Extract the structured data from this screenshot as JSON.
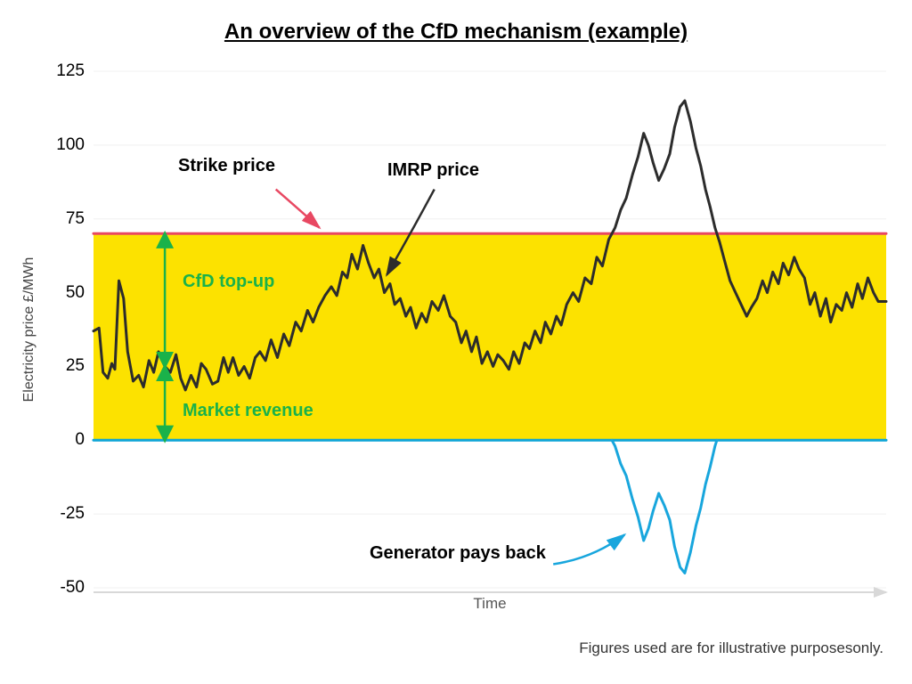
{
  "title": "An overview of the CfD mechanism (example)",
  "ylabel": "Electricity price £/MWh",
  "xlabel": "Time",
  "footnote": "Figures used are for illustrative purposesonly.",
  "chart": {
    "type": "line",
    "xlim": [
      0,
      100
    ],
    "ylim": [
      -50,
      125
    ],
    "ytick_step": 25,
    "yticks": [
      -50,
      -25,
      0,
      25,
      50,
      75,
      100,
      125
    ],
    "strike_price": 70,
    "background_color": "#ffffff",
    "grid_color": "#f3f3f3",
    "grid_stroke": 1.2,
    "yellow_fill": "#fce200",
    "strike_line_color": "#e84862",
    "strike_line_width": 3,
    "zero_line_color": "#0fa5d6",
    "zero_line_width": 3,
    "imrp_line_color": "#2c2c2c",
    "imrp_line_width": 3,
    "payback_line_color": "#18a6dd",
    "payback_line_width": 3,
    "annotation_colors": {
      "strike": "#e84862",
      "imrp": "#2c2c2c",
      "topup": "#1ab24a",
      "market": "#1ab24a",
      "payback": "#18a6dd"
    },
    "annotations": {
      "strike_price": "Strike price",
      "imrp_price": "IMRP price",
      "cfd_topup": "CfD top-up",
      "market_revenue": "Market revenue",
      "generator_pays_back": "Generator pays back"
    },
    "imrp_series": [
      [
        0,
        37
      ],
      [
        0.7,
        38
      ],
      [
        1.2,
        23
      ],
      [
        1.8,
        21
      ],
      [
        2.3,
        26
      ],
      [
        2.7,
        24
      ],
      [
        3.2,
        54
      ],
      [
        3.8,
        48
      ],
      [
        4.3,
        30
      ],
      [
        5,
        20
      ],
      [
        5.7,
        22
      ],
      [
        6.3,
        18
      ],
      [
        7,
        27
      ],
      [
        7.6,
        23
      ],
      [
        8.2,
        30
      ],
      [
        9,
        25
      ],
      [
        9.7,
        23
      ],
      [
        10.4,
        29
      ],
      [
        11,
        21
      ],
      [
        11.6,
        17
      ],
      [
        12.3,
        22
      ],
      [
        13,
        18
      ],
      [
        13.6,
        26
      ],
      [
        14.2,
        24
      ],
      [
        15,
        19
      ],
      [
        15.7,
        20
      ],
      [
        16.4,
        28
      ],
      [
        17,
        23
      ],
      [
        17.6,
        28
      ],
      [
        18.3,
        22
      ],
      [
        19,
        25
      ],
      [
        19.7,
        21
      ],
      [
        20.4,
        28
      ],
      [
        21,
        30
      ],
      [
        21.7,
        27
      ],
      [
        22.4,
        34
      ],
      [
        23.2,
        28
      ],
      [
        24,
        36
      ],
      [
        24.7,
        32
      ],
      [
        25.5,
        40
      ],
      [
        26.2,
        37
      ],
      [
        27,
        44
      ],
      [
        27.7,
        40
      ],
      [
        28.4,
        45
      ],
      [
        29.2,
        49
      ],
      [
        30,
        52
      ],
      [
        30.7,
        49
      ],
      [
        31.4,
        57
      ],
      [
        32,
        55
      ],
      [
        32.6,
        63
      ],
      [
        33.3,
        58
      ],
      [
        34,
        66
      ],
      [
        34.7,
        60
      ],
      [
        35.4,
        55
      ],
      [
        36,
        58
      ],
      [
        36.7,
        50
      ],
      [
        37.4,
        53
      ],
      [
        38,
        46
      ],
      [
        38.7,
        48
      ],
      [
        39.4,
        42
      ],
      [
        40,
        45
      ],
      [
        40.7,
        38
      ],
      [
        41.4,
        43
      ],
      [
        42,
        40
      ],
      [
        42.7,
        47
      ],
      [
        43.5,
        44
      ],
      [
        44.2,
        49
      ],
      [
        45,
        42
      ],
      [
        45.7,
        40
      ],
      [
        46.4,
        33
      ],
      [
        47,
        37
      ],
      [
        47.7,
        30
      ],
      [
        48.3,
        35
      ],
      [
        49,
        26
      ],
      [
        49.7,
        30
      ],
      [
        50.4,
        25
      ],
      [
        51,
        29
      ],
      [
        51.7,
        27
      ],
      [
        52.4,
        24
      ],
      [
        53,
        30
      ],
      [
        53.7,
        26
      ],
      [
        54.4,
        33
      ],
      [
        55,
        31
      ],
      [
        55.7,
        37
      ],
      [
        56.4,
        33
      ],
      [
        57,
        40
      ],
      [
        57.7,
        36
      ],
      [
        58.4,
        42
      ],
      [
        59,
        39
      ],
      [
        59.7,
        46
      ],
      [
        60.5,
        50
      ],
      [
        61.2,
        47
      ],
      [
        62,
        55
      ],
      [
        62.8,
        53
      ],
      [
        63.5,
        62
      ],
      [
        64.2,
        59
      ],
      [
        65,
        68
      ],
      [
        65.8,
        72
      ],
      [
        66.5,
        78
      ],
      [
        67.2,
        82
      ],
      [
        68,
        90
      ],
      [
        68.7,
        96
      ],
      [
        69.4,
        104
      ],
      [
        70,
        100
      ],
      [
        70.6,
        94
      ],
      [
        71.3,
        88
      ],
      [
        72,
        92
      ],
      [
        72.7,
        97
      ],
      [
        73.3,
        106
      ],
      [
        74,
        113
      ],
      [
        74.6,
        115
      ],
      [
        75.3,
        108
      ],
      [
        76,
        99
      ],
      [
        76.6,
        93
      ],
      [
        77.2,
        85
      ],
      [
        77.8,
        79
      ],
      [
        78.4,
        72
      ],
      [
        79,
        67
      ],
      [
        79.6,
        61
      ],
      [
        80.3,
        54
      ],
      [
        81,
        50
      ],
      [
        81.7,
        46
      ],
      [
        82.4,
        42
      ],
      [
        83,
        45
      ],
      [
        83.7,
        48
      ],
      [
        84.4,
        54
      ],
      [
        85,
        50
      ],
      [
        85.7,
        57
      ],
      [
        86.4,
        53
      ],
      [
        87,
        60
      ],
      [
        87.7,
        56
      ],
      [
        88.4,
        62
      ],
      [
        89,
        58
      ],
      [
        89.7,
        55
      ],
      [
        90.4,
        46
      ],
      [
        91,
        50
      ],
      [
        91.7,
        42
      ],
      [
        92.4,
        48
      ],
      [
        93,
        40
      ],
      [
        93.7,
        46
      ],
      [
        94.4,
        44
      ],
      [
        95,
        50
      ],
      [
        95.7,
        45
      ],
      [
        96.4,
        53
      ],
      [
        97,
        48
      ],
      [
        97.7,
        55
      ],
      [
        98.4,
        50
      ],
      [
        99,
        47
      ],
      [
        100,
        47
      ]
    ]
  },
  "title_fontsize": 24,
  "tick_fontsize": 19,
  "axis_label_fontsize": 16,
  "annotation_fontsize": 20
}
